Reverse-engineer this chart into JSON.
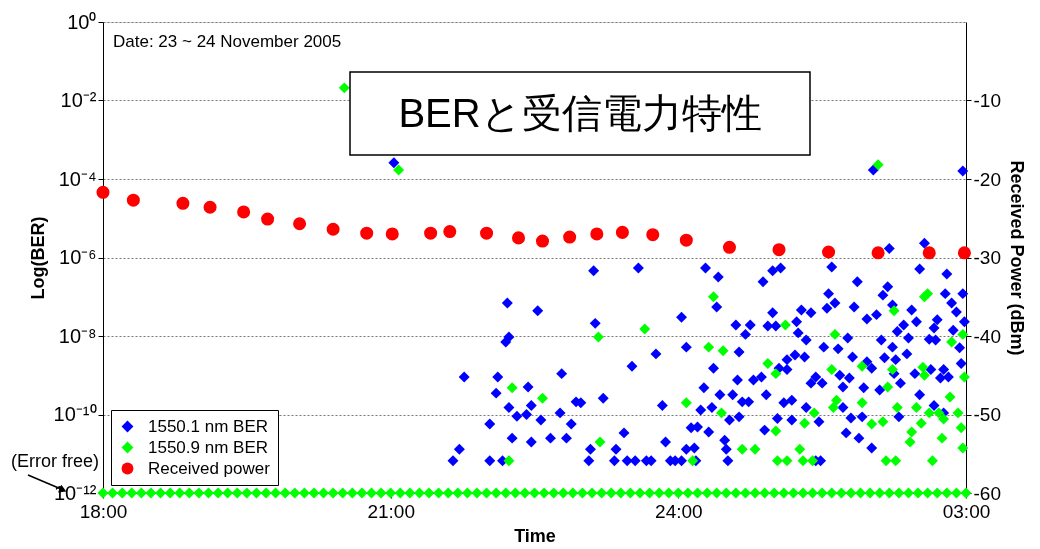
{
  "chart_data": {
    "type": "scatter",
    "title": "BERと受信電力特性",
    "xlabel": "Time",
    "ylabel": "Log(BER)",
    "y2label": "Received Power (dBm)",
    "annotations": [
      "Date: 23 ~ 24 November 2005",
      {
        "text": "(Error free)",
        "x": "2005-11-23T18:00",
        "y": 1e-12
      }
    ],
    "xlim": [
      "2005-11-23T18:00",
      "2005-11-24T03:00"
    ],
    "xticks": [
      {
        "value": "2005-11-23T18:00",
        "label": "18:00"
      },
      {
        "value": "2005-11-23T21:00",
        "label": "21:00"
      },
      {
        "value": "2005-11-24T00:00",
        "label": "24:00"
      },
      {
        "value": "2005-11-24T03:00",
        "label": "03:00"
      }
    ],
    "ylim": [
      1e-12,
      1
    ],
    "yticks": [
      {
        "value": 1e-12,
        "label": "10⁻¹²"
      },
      {
        "value": 1e-10,
        "label": "10⁻¹⁰"
      },
      {
        "value": 1e-08,
        "label": "10⁻⁸"
      },
      {
        "value": 1e-06,
        "label": "10⁻⁶"
      },
      {
        "value": 0.0001,
        "label": "10⁻⁴"
      },
      {
        "value": 0.01,
        "label": "10⁻²"
      },
      {
        "value": 1,
        "label": "10⁰"
      }
    ],
    "y2lim": [
      -60,
      0
    ],
    "y2ticks": [
      -60,
      -50,
      -40,
      -30,
      -20,
      -10
    ],
    "log": "y",
    "grid": "y",
    "legend": "bottom left",
    "marker": "diamond",
    "series": [
      {
        "name": "1550.1 nm BER",
        "color": "#0000ff",
        "x": [
          "2005-11-23T21:02",
          "2005-11-24T02:02",
          "2005-11-24T02:58",
          "2005-11-23T21:39",
          "2005-11-23T21:43",
          "2005-11-23T21:46",
          "2005-11-23T22:02",
          "2005-11-23T22:02",
          "2005-11-23T22:10",
          "2005-11-23T22:07",
          "2005-11-23T22:06",
          "2005-11-23T22:13",
          "2005-11-23T22:14",
          "2005-11-23T22:12",
          "2005-11-23T22:14",
          "2005-11-23T22:19",
          "2005-11-23T22:16",
          "2005-11-23T22:25",
          "2005-11-23T22:26",
          "2005-11-23T22:28",
          "2005-11-23T22:28",
          "2005-11-23T22:32",
          "2005-11-23T22:34",
          "2005-11-23T22:40",
          "2005-11-23T22:46",
          "2005-11-23T22:47",
          "2005-11-23T22:53",
          "2005-11-23T22:50",
          "2005-11-23T22:56",
          "2005-11-23T22:59",
          "2005-11-23T23:04",
          "2005-11-23T23:05",
          "2005-11-23T23:07",
          "2005-11-23T23:08",
          "2005-11-23T23:13",
          "2005-11-23T23:20",
          "2005-11-23T23:21",
          "2005-11-23T23:26",
          "2005-11-23T23:28",
          "2005-11-23T23:31",
          "2005-11-23T23:33",
          "2005-11-23T23:35",
          "2005-11-23T23:40",
          "2005-11-23T23:43",
          "2005-11-23T23:46",
          "2005-11-23T23:50",
          "2005-11-23T23:52",
          "2005-11-23T23:55",
          "2005-11-23T23:58",
          "2005-11-24T00:02",
          "2005-11-24T00:17",
          "2005-11-24T00:25",
          "2005-11-24T00:24",
          "2005-11-24T00:05",
          "2005-11-24T00:22",
          "2005-11-24T00:36",
          "2005-11-24T00:42",
          "2005-11-24T00:45",
          "2005-11-24T00:38",
          "2005-11-24T00:37",
          "2005-11-24T00:16",
          "2005-11-24T00:26",
          "2005-11-24T00:14",
          "2005-11-24T00:21",
          "2005-11-24T00:34",
          "2005-11-24T00:40",
          "2005-11-24T00:44",
          "2005-11-24T00:47",
          "2005-11-24T00:52",
          "2005-11-24T00:55",
          "2005-11-24T00:32",
          "2005-11-24T00:38",
          "2005-11-24T00:08",
          "2005-11-24T00:12",
          "2005-11-24T00:19",
          "2005-11-24T00:05",
          "2005-11-24T00:10",
          "2005-11-24T00:02",
          "2005-11-24T00:11",
          "2005-11-24T00:29",
          "2005-11-24T00:30",
          "2005-11-24T00:31",
          "2005-11-24T00:53",
          "2005-11-24T00:59",
          "2005-11-24T01:04",
          "2005-11-24T00:59",
          "2005-11-24T00:56",
          "2005-11-24T01:01",
          "2005-11-24T01:14",
          "2005-11-24T01:17",
          "2005-11-24T01:23",
          "2005-11-24T01:15",
          "2005-11-24T01:20",
          "2005-11-24T01:13",
          "2005-11-24T01:19",
          "2005-11-24T01:08",
          "2005-11-24T01:03",
          "2005-11-24T01:08",
          "2005-11-24T01:23",
          "2005-11-24T01:26",
          "2005-11-24T01:11",
          "2005-11-24T01:06",
          "2005-11-24T01:20",
          "2005-11-24T01:11",
          "2005-11-24T01:02",
          "2005-11-24T00:54",
          "2005-11-24T01:28",
          "2005-11-24T01:26",
          "2005-11-24T01:36",
          "2005-11-24T01:52",
          "2005-11-24T02:12",
          "2005-11-24T02:34",
          "2005-11-24T02:31",
          "2005-11-24T02:48",
          "2005-11-24T01:34",
          "2005-11-24T01:38",
          "2005-11-24T01:33",
          "2005-11-24T01:50",
          "2005-11-24T01:58",
          "2005-11-24T02:04",
          "2005-11-24T02:08",
          "2005-11-24T02:11",
          "2005-11-24T02:14",
          "2005-11-24T02:26",
          "2005-11-24T02:29",
          "2005-11-24T02:21",
          "2005-11-24T02:17",
          "2005-11-24T02:24",
          "2005-11-24T02:37",
          "2005-11-24T02:41",
          "2005-11-24T02:40",
          "2005-11-24T02:42",
          "2005-11-24T02:47",
          "2005-11-24T02:51",
          "2005-11-24T02:54",
          "2005-11-24T02:59",
          "2005-11-24T02:58",
          "2005-11-24T02:52",
          "2005-11-24T02:56",
          "2005-11-24T02:57",
          "2005-11-24T01:46",
          "2005-11-24T01:31",
          "2005-11-24T01:40",
          "2005-11-24T02:07",
          "2005-11-24T02:14",
          "2005-11-24T02:23",
          "2005-11-24T01:49",
          "2005-11-24T02:09",
          "2005-11-24T02:16",
          "2005-11-24T01:58",
          "2005-11-24T02:01",
          "2005-11-24T01:41",
          "2005-11-24T01:47",
          "2005-11-24T01:43",
          "2005-11-24T01:30",
          "2005-11-24T01:56",
          "2005-11-24T02:06",
          "2005-11-24T02:19",
          "2005-11-24T02:15",
          "2005-11-24T02:28",
          "2005-11-24T02:31",
          "2005-11-24T02:38",
          "2005-11-24T02:46",
          "2005-11-24T02:49",
          "2005-11-24T02:44",
          "2005-11-24T01:43",
          "2005-11-24T01:48",
          "2005-11-24T01:55",
          "2005-11-24T02:18",
          "2005-11-24T02:40",
          "2005-11-24T02:46",
          "2005-11-24T01:45",
          "2005-11-24T01:53",
          "2005-11-24T02:01",
          "2005-11-24T01:29"
        ],
        "values": [
          0.00026,
          0.00017,
          0.00016,
          6.6e-12,
          1.3e-11,
          9e-10,
          6.6e-12,
          5.7e-11,
          6.6e-12,
          9e-10,
          3.5e-10,
          6.9e-08,
          9.4e-09,
          7e-09,
          1.5e-10,
          9e-11,
          2.5e-11,
          1e-10,
          5e-10,
          1.7e-10,
          2e-11,
          4.4e-08,
          7.2e-11,
          2.5e-11,
          1.1e-10,
          1.1e-09,
          5.7e-11,
          2.5e-11,
          2.1e-10,
          2e-10,
          6.6e-12,
          1.3e-11,
          4.6e-07,
          2.1e-08,
          2.6e-10,
          6.6e-12,
          1.3e-11,
          3.4e-11,
          6.6e-12,
          1.7e-09,
          6.6e-12,
          5.4e-07,
          6.6e-12,
          6.6e-12,
          3.5e-09,
          1.7e-10,
          2e-11,
          6.6e-12,
          6.6e-12,
          3e-08,
          5.4e-07,
          3.2e-07,
          5.5e-08,
          5.2e-09,
          1.5e-09,
          1.9e-08,
          1.1e-08,
          1.9e-08,
          3.9e-09,
          7.6e-10,
          4.8e-10,
          3.2e-10,
          1.3e-10,
          1.5e-10,
          3.2e-10,
          2.1e-10,
          2.1e-10,
          7.6e-10,
          9e-10,
          3.2e-10,
          7.2e-11,
          8.7e-11,
          4.6e-11,
          4.8e-11,
          3.6e-11,
          1.3e-11,
          1.4e-11,
          6.6e-12,
          6.6e-12,
          2.2e-11,
          1.3e-11,
          6.6e-12,
          2.4e-07,
          4.6e-07,
          5.4e-07,
          3.9e-08,
          1.8e-08,
          1.8e-08,
          2.3e-08,
          4.6e-08,
          3.9e-08,
          1.2e-08,
          7.9e-09,
          3.3e-09,
          2.9e-09,
          2.5e-09,
          1.5e-09,
          1.4e-09,
          6.3e-10,
          9e-10,
          2.3e-10,
          2e-10,
          1.5e-10,
          7.2e-11,
          7.9e-11,
          4e-11,
          6.5e-11,
          6.6e-12,
          5.7e-07,
          2.4e-07,
          1.7e-06,
          2.3e-06,
          5.1e-07,
          3.8e-07,
          1.2e-07,
          6.9e-08,
          5.1e-08,
          5.5e-08,
          2.7e-08,
          3.5e-08,
          1.1e-07,
          1.8e-07,
          6.2e-08,
          4.6e-08,
          2.3e-08,
          1.9e-08,
          1.3e-08,
          8.9e-09,
          8.3e-09,
          7.9e-09,
          1.6e-08,
          2.6e-08,
          1.2e-07,
          6.9e-08,
          4.1e-08,
          2.3e-08,
          1.2e-07,
          1.4e-08,
          5e-09,
          2e-09,
          8.9e-09,
          5.2e-09,
          4.7e-09,
          7.9e-09,
          5.2e-09,
          3.5e-09,
          2.9e-09,
          2.8e-09,
          2.5e-09,
          2.2e-09,
          1.5e-09,
          1e-09,
          8.5e-10,
          5e-10,
          6.3e-10,
          4.8e-10,
          4.2e-10,
          6.3e-10,
          1.1e-09,
          1.1e-09,
          3.2e-10,
          1.4e-09,
          1.4e-09,
          9e-10,
          8.5e-10,
          1.5e-10,
          8.1e-11,
          8.7e-11,
          8.7e-11,
          1.7e-10,
          1.1e-10,
          3.4e-11,
          2.5e-11,
          1.4e-11,
          6.6e-12
        ]
      },
      {
        "name": "1550.9 nm BER",
        "color": "#00ff00",
        "x": [
          "2005-11-23T20:31",
          "2005-11-23T21:05",
          "2005-11-24T02:05",
          "2005-11-23T22:16",
          "2005-11-23T22:14",
          "2005-11-23T22:35",
          "2005-11-23T23:10",
          "2005-11-23T23:11",
          "2005-11-23T23:39",
          "2005-11-24T00:22",
          "2005-11-24T00:19",
          "2005-11-24T00:28",
          "2005-11-24T00:56",
          "2005-11-24T01:01",
          "2005-11-24T01:07",
          "2005-11-24T00:05",
          "2005-11-24T00:27",
          "2005-11-24T00:40",
          "2005-11-24T00:48",
          "2005-11-24T00:09",
          "2005-11-24T01:02",
          "2005-11-24T01:08",
          "2005-11-24T01:01",
          "2005-11-24T01:19",
          "2005-11-24T01:25",
          "2005-11-24T01:16",
          "2005-11-24T01:18",
          "2005-11-24T01:24",
          "2005-11-24T01:38",
          "2005-11-24T01:36",
          "2005-11-24T01:55",
          "2005-11-24T02:14",
          "2005-11-24T02:15",
          "2005-11-24T02:36",
          "2005-11-24T02:34",
          "2005-11-24T02:51",
          "2005-11-24T02:58",
          "2005-11-24T02:59",
          "2005-11-24T02:11",
          "2005-11-24T02:33",
          "2005-11-24T02:34",
          "2005-11-24T01:39",
          "2005-11-24T01:37",
          "2005-11-24T01:55",
          "2005-11-24T02:17",
          "2005-11-24T02:29",
          "2005-11-24T02:01",
          "2005-11-24T02:08",
          "2005-11-24T02:32",
          "2005-11-24T02:26",
          "2005-11-24T02:25",
          "2005-11-24T02:37",
          "2005-11-24T02:43",
          "2005-11-24T02:46",
          "2005-11-24T02:50",
          "2005-11-24T02:55",
          "2005-11-24T02:57",
          "2005-11-24T02:45",
          "2005-11-24T02:58",
          "2005-11-24T02:10",
          "2005-11-24T02:16",
          "2005-11-24T02:39",
          "2005-11-23T18:00",
          "2005-11-23T18:06",
          "2005-11-23T18:12",
          "2005-11-23T18:18",
          "2005-11-23T18:24",
          "2005-11-23T18:30",
          "2005-11-23T18:36",
          "2005-11-23T18:42",
          "2005-11-23T18:48",
          "2005-11-23T18:54",
          "2005-11-23T19:00",
          "2005-11-23T19:06",
          "2005-11-23T19:12",
          "2005-11-23T19:18",
          "2005-11-23T19:24",
          "2005-11-23T19:30",
          "2005-11-23T19:36",
          "2005-11-23T19:42",
          "2005-11-23T19:48",
          "2005-11-23T19:54",
          "2005-11-23T20:00",
          "2005-11-23T20:06",
          "2005-11-23T20:12",
          "2005-11-23T20:18",
          "2005-11-23T20:24",
          "2005-11-23T20:30",
          "2005-11-23T20:36",
          "2005-11-23T20:42",
          "2005-11-23T20:48",
          "2005-11-23T20:54",
          "2005-11-23T21:00",
          "2005-11-23T21:06",
          "2005-11-23T21:12",
          "2005-11-23T21:18",
          "2005-11-23T21:24",
          "2005-11-23T21:30",
          "2005-11-23T21:36",
          "2005-11-23T21:42",
          "2005-11-23T21:48",
          "2005-11-23T21:54",
          "2005-11-23T22:00",
          "2005-11-23T22:06",
          "2005-11-23T22:12",
          "2005-11-23T22:18",
          "2005-11-23T22:24",
          "2005-11-23T22:30",
          "2005-11-23T22:36",
          "2005-11-23T22:42",
          "2005-11-23T22:48",
          "2005-11-23T22:54",
          "2005-11-23T23:00",
          "2005-11-23T23:06",
          "2005-11-23T23:12",
          "2005-11-23T23:18",
          "2005-11-23T23:24",
          "2005-11-23T23:30",
          "2005-11-23T23:36",
          "2005-11-23T23:42",
          "2005-11-23T23:48",
          "2005-11-23T23:54",
          "2005-11-24T00:00",
          "2005-11-24T00:06",
          "2005-11-24T00:12",
          "2005-11-24T00:18",
          "2005-11-24T00:24",
          "2005-11-24T00:30",
          "2005-11-24T00:36",
          "2005-11-24T00:42",
          "2005-11-24T00:48",
          "2005-11-24T00:54",
          "2005-11-24T01:00",
          "2005-11-24T01:06",
          "2005-11-24T01:12",
          "2005-11-24T01:18",
          "2005-11-24T01:24",
          "2005-11-24T01:30",
          "2005-11-24T01:36",
          "2005-11-24T01:42",
          "2005-11-24T01:48",
          "2005-11-24T01:54",
          "2005-11-24T02:00",
          "2005-11-24T02:06",
          "2005-11-24T02:12",
          "2005-11-24T02:18",
          "2005-11-24T02:24",
          "2005-11-24T02:30",
          "2005-11-24T02:36",
          "2005-11-24T02:42",
          "2005-11-24T02:48",
          "2005-11-24T02:54",
          "2005-11-24T03:00"
        ],
        "values": [
          0.021,
          0.00017,
          0.00023,
          4.8e-10,
          6.6e-12,
          2.6e-10,
          9.4e-09,
          2e-11,
          1.5e-08,
          1e-07,
          5.2e-09,
          4.2e-09,
          2e-09,
          1.1e-09,
          1.9e-08,
          2e-10,
          1.1e-10,
          1.3e-11,
          1.3e-11,
          6.6e-12,
          6.6e-12,
          6.6e-12,
          3.8e-11,
          6e-11,
          1.1e-10,
          1.3e-11,
          6.6e-12,
          6.6e-12,
          1.1e-08,
          1.4e-09,
          1.7e-09,
          1.4e-09,
          4.4e-08,
          1.2e-07,
          1e-07,
          7e-09,
          1.1e-08,
          9e-10,
          5e-10,
          1.6e-09,
          1e-09,
          2.3e-10,
          1.5e-10,
          2e-10,
          1.5e-10,
          1.5e-10,
          5.7e-11,
          6.5e-11,
          6e-11,
          3.6e-11,
          2e-11,
          1.1e-10,
          1.1e-10,
          7.7e-11,
          2.8e-10,
          1.1e-10,
          4.6e-11,
          2.5e-11,
          1.4e-11,
          6.6e-12,
          6.6e-12,
          6.6e-12,
          1e-12,
          1e-12,
          1e-12,
          1e-12,
          1e-12,
          1e-12,
          1e-12,
          1e-12,
          1e-12,
          1e-12,
          1e-12,
          1e-12,
          1e-12,
          1e-12,
          1e-12,
          1e-12,
          1e-12,
          1e-12,
          1e-12,
          1e-12,
          1e-12,
          1e-12,
          1e-12,
          1e-12,
          1e-12,
          1e-12,
          1e-12,
          1e-12,
          1e-12,
          1e-12,
          1e-12,
          1e-12,
          1e-12,
          1e-12,
          1e-12,
          1e-12,
          1e-12,
          1e-12,
          1e-12,
          1e-12,
          1e-12,
          1e-12,
          1e-12,
          1e-12,
          1e-12,
          1e-12,
          1e-12,
          1e-12,
          1e-12,
          1e-12,
          1e-12,
          1e-12,
          1e-12,
          1e-12,
          1e-12,
          1e-12,
          1e-12,
          1e-12,
          1e-12,
          1e-12,
          1e-12,
          1e-12,
          1e-12,
          1e-12,
          1e-12,
          1e-12,
          1e-12,
          1e-12,
          1e-12,
          1e-12,
          1e-12,
          1e-12,
          1e-12,
          1e-12,
          1e-12,
          1e-12,
          1e-12,
          1e-12,
          1e-12,
          1e-12,
          1e-12,
          1e-12,
          1e-12,
          1e-12,
          1e-12,
          1e-12,
          1e-12,
          1e-12,
          1e-12,
          1e-12,
          1e-12
        ]
      },
      {
        "name": "Received power",
        "color": "#ff0000",
        "marker": "circle",
        "axis": "y2",
        "x": [
          "2005-11-23T18:00",
          "2005-11-23T18:19",
          "2005-11-23T18:50",
          "2005-11-23T19:07",
          "2005-11-23T19:28",
          "2005-11-23T19:43",
          "2005-11-23T20:03",
          "2005-11-23T20:24",
          "2005-11-23T20:45",
          "2005-11-23T21:01",
          "2005-11-23T21:25",
          "2005-11-23T21:37",
          "2005-11-23T22:00",
          "2005-11-23T22:20",
          "2005-11-23T22:35",
          "2005-11-23T22:52",
          "2005-11-23T23:09",
          "2005-11-23T23:25",
          "2005-11-23T23:44",
          "2005-11-24T00:05",
          "2005-11-24T00:32",
          "2005-11-24T01:03",
          "2005-11-24T01:34",
          "2005-11-24T02:05",
          "2005-11-24T02:37",
          "2005-11-24T02:59"
        ],
        "values": [
          -21.7,
          -22.7,
          -23.1,
          -23.6,
          -24.2,
          -25.1,
          -25.7,
          -26.4,
          -26.9,
          -27.0,
          -26.9,
          -26.7,
          -26.9,
          -27.5,
          -27.9,
          -27.4,
          -27.0,
          -26.8,
          -27.1,
          -27.8,
          -28.7,
          -29.0,
          -29.3,
          -29.4,
          -29.4,
          -29.4
        ]
      }
    ]
  }
}
